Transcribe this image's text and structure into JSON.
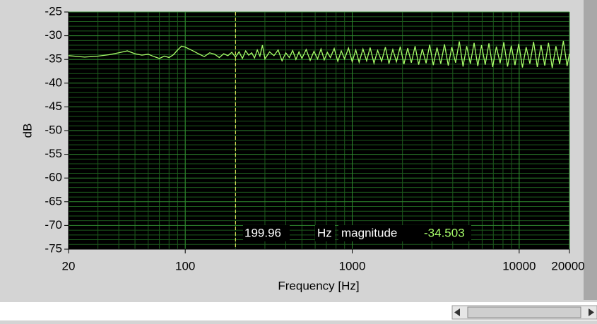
{
  "chart_data": {
    "type": "line",
    "xscale": "log",
    "grid": true,
    "xlabel": "Frequency [Hz]",
    "ylabel": "dB",
    "xlim": [
      20,
      20000
    ],
    "ylim": [
      -75,
      -25
    ],
    "xticks": [
      20,
      100,
      1000,
      10000,
      20000
    ],
    "yticks": [
      -25,
      -30,
      -35,
      -40,
      -45,
      -50,
      -55,
      -60,
      -65,
      -70,
      -75
    ],
    "xgrid_minor": [
      20,
      30,
      40,
      50,
      60,
      70,
      80,
      90,
      100,
      200,
      300,
      400,
      500,
      600,
      700,
      800,
      900,
      1000,
      2000,
      3000,
      4000,
      5000,
      6000,
      7000,
      8000,
      9000,
      10000,
      20000
    ],
    "ygrid_minor": [
      -26,
      -27,
      -28,
      -29,
      -31,
      -32,
      -33,
      -34,
      -36,
      -37,
      -38,
      -39,
      -41,
      -42,
      -43,
      -44,
      -46,
      -47,
      -48,
      -49,
      -51,
      -52,
      -53,
      -54,
      -56,
      -57,
      -58,
      -59,
      -61,
      -62,
      -63,
      -64,
      -66,
      -67,
      -68,
      -69,
      -71,
      -72,
      -73,
      -74
    ],
    "x": [
      20,
      25,
      30,
      35,
      40,
      45,
      50,
      55,
      60,
      65,
      70,
      75,
      80,
      85,
      90,
      95,
      100,
      110,
      120,
      130,
      140,
      150,
      160,
      170,
      180,
      190,
      200,
      210,
      220,
      230,
      240,
      250,
      260,
      270,
      280,
      290,
      300,
      320,
      340,
      360,
      380,
      400,
      420,
      440,
      460,
      480,
      500,
      530,
      560,
      590,
      620,
      650,
      680,
      710,
      740,
      780,
      820,
      860,
      900,
      950,
      1000,
      1050,
      1100,
      1160,
      1220,
      1280,
      1350,
      1420,
      1500,
      1580,
      1660,
      1750,
      1840,
      1940,
      2040,
      2150,
      2260,
      2380,
      2500,
      2630,
      2770,
      2910,
      3060,
      3220,
      3390,
      3570,
      3760,
      3950,
      4160,
      4380,
      4610,
      4850,
      5100,
      5370,
      5650,
      5950,
      6260,
      6590,
      6940,
      7300,
      7690,
      8090,
      8520,
      8970,
      9440,
      9940,
      10460,
      11010,
      11590,
      12200,
      12840,
      13520,
      14230,
      14980,
      15770,
      16600,
      17470,
      18390,
      19360,
      20000
    ],
    "series": [
      {
        "name": "magnitude",
        "color": "#a8ff6a",
        "values": [
          -34.2,
          -34.5,
          -34.3,
          -34.0,
          -33.6,
          -33.2,
          -33.8,
          -34.1,
          -33.9,
          -34.4,
          -34.8,
          -34.3,
          -34.6,
          -34.0,
          -33.0,
          -32.2,
          -32.4,
          -33.1,
          -33.8,
          -34.4,
          -33.6,
          -33.9,
          -34.6,
          -33.8,
          -34.2,
          -33.5,
          -34.5,
          -33.4,
          -34.8,
          -33.2,
          -34.1,
          -33.6,
          -34.7,
          -33.0,
          -34.3,
          -32.0,
          -34.9,
          -33.4,
          -34.2,
          -33.0,
          -35.3,
          -33.6,
          -34.6,
          -33.1,
          -35.0,
          -33.4,
          -34.8,
          -32.9,
          -35.2,
          -33.3,
          -34.9,
          -32.8,
          -35.1,
          -33.5,
          -34.6,
          -32.7,
          -35.4,
          -33.2,
          -34.9,
          -32.6,
          -35.5,
          -33.0,
          -35.6,
          -32.8,
          -35.3,
          -32.5,
          -35.8,
          -33.1,
          -35.4,
          -32.4,
          -35.9,
          -32.9,
          -35.5,
          -32.3,
          -36.0,
          -32.6,
          -35.7,
          -32.2,
          -36.1,
          -32.8,
          -35.8,
          -31.9,
          -36.2,
          -32.5,
          -35.9,
          -31.8,
          -36.3,
          -32.4,
          -35.7,
          -31.2,
          -36.5,
          -32.2,
          -35.9,
          -31.5,
          -36.4,
          -32.0,
          -36.1,
          -31.6,
          -36.6,
          -32.3,
          -35.8,
          -31.4,
          -36.5,
          -32.1,
          -36.2,
          -31.7,
          -36.7,
          -32.4,
          -35.9,
          -31.3,
          -36.6,
          -32.0,
          -36.3,
          -31.5,
          -36.8,
          -32.2,
          -36.0,
          -31.1,
          -36.4,
          -33.8
        ]
      }
    ],
    "cursor": {
      "x": 199.96,
      "x_label": "199.96",
      "x_unit": "Hz",
      "y_name": "magnitude",
      "y": -34.503,
      "color": "#ffff66"
    }
  }
}
